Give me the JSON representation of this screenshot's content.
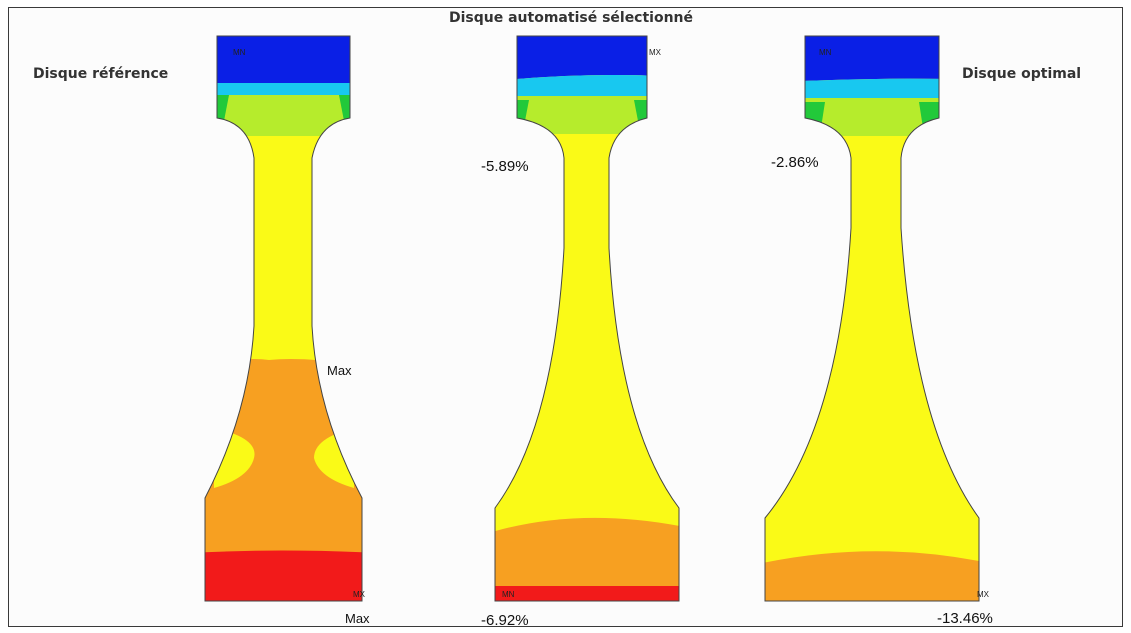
{
  "title": "Disque automatisé sélectionné",
  "disks": [
    {
      "label": "Disque référence",
      "max_mid": "Max",
      "max_bottom": "Max",
      "marker_top": "MN",
      "marker_bottom": "MX"
    },
    {
      "percent_neck": "-5.89%",
      "percent_bottom": "-6.92%",
      "marker_top": "MX",
      "marker_bottom": "MN"
    },
    {
      "label": "Disque optimal",
      "percent_neck": "-2.86%",
      "percent_bottom": "-13.46%",
      "marker_top": "MN",
      "marker_bottom": "MX"
    }
  ],
  "colors": {
    "blue": "#0a1fe6",
    "cyan": "#18c8f0",
    "green": "#b6ec2c",
    "green_dark": "#22c93a",
    "yellow": "#fafa17",
    "orange": "#f7a021",
    "red": "#f21a1a"
  }
}
